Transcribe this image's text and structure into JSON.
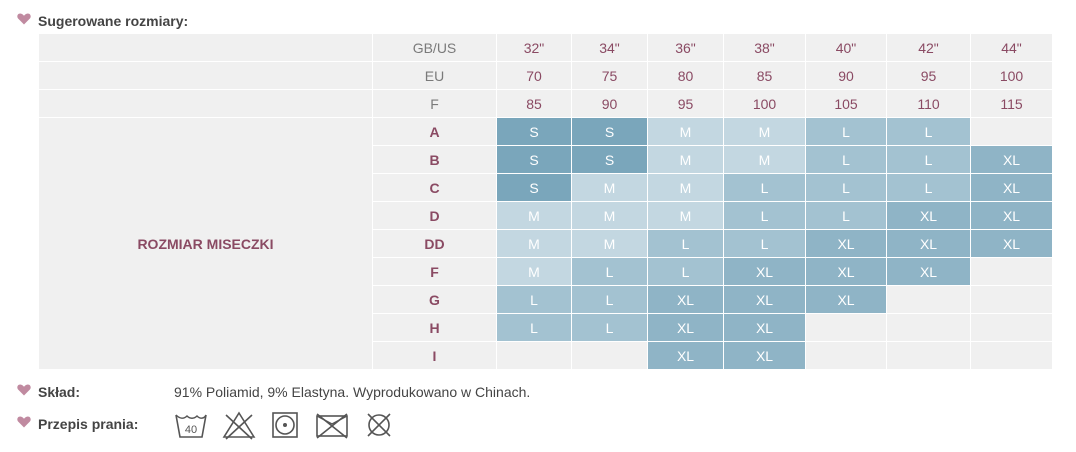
{
  "sections": {
    "suggested_sizes_label": "Sugerowane rozmiary:",
    "composition_label": "Skład:",
    "composition_value": "91% Poliamid, 9% Elastyna. Wyprodukowano w Chinach.",
    "washing_label": "Przepis prania:"
  },
  "colors": {
    "heart": "#c08aa0",
    "S": "#7aa6bb",
    "M": "#c3d7e1",
    "L": "#a3c2d1",
    "XL": "#8fb4c6"
  },
  "table": {
    "row_title": "ROZMIAR MISECZKI",
    "header_rows": [
      {
        "label": "GB/US",
        "values": [
          "32\"",
          "34\"",
          "36\"",
          "38\"",
          "40\"",
          "42\"",
          "44\""
        ]
      },
      {
        "label": "EU",
        "values": [
          "70",
          "75",
          "80",
          "85",
          "90",
          "95",
          "100"
        ]
      },
      {
        "label": "F",
        "values": [
          "85",
          "90",
          "95",
          "100",
          "105",
          "110",
          "115"
        ]
      }
    ],
    "cup_rows": [
      {
        "cup": "A",
        "sizes": [
          "S",
          "S",
          "M",
          "M",
          "L",
          "L",
          ""
        ]
      },
      {
        "cup": "B",
        "sizes": [
          "S",
          "S",
          "M",
          "M",
          "L",
          "L",
          "XL"
        ]
      },
      {
        "cup": "C",
        "sizes": [
          "S",
          "M",
          "M",
          "L",
          "L",
          "L",
          "XL"
        ]
      },
      {
        "cup": "D",
        "sizes": [
          "M",
          "M",
          "M",
          "L",
          "L",
          "XL",
          "XL"
        ]
      },
      {
        "cup": "DD",
        "sizes": [
          "M",
          "M",
          "L",
          "L",
          "XL",
          "XL",
          "XL"
        ]
      },
      {
        "cup": "F",
        "sizes": [
          "M",
          "L",
          "L",
          "XL",
          "XL",
          "XL",
          ""
        ]
      },
      {
        "cup": "G",
        "sizes": [
          "L",
          "L",
          "XL",
          "XL",
          "XL",
          "",
          ""
        ]
      },
      {
        "cup": "H",
        "sizes": [
          "L",
          "L",
          "XL",
          "XL",
          "",
          "",
          ""
        ]
      },
      {
        "cup": "I",
        "sizes": [
          "",
          "",
          "XL",
          "XL",
          "",
          "",
          ""
        ]
      }
    ]
  },
  "wash_icons": [
    {
      "name": "wash-40-icon",
      "text": "40"
    },
    {
      "name": "no-bleach-icon"
    },
    {
      "name": "tumble-dry-icon"
    },
    {
      "name": "no-iron-icon"
    },
    {
      "name": "no-dry-clean-icon"
    }
  ]
}
